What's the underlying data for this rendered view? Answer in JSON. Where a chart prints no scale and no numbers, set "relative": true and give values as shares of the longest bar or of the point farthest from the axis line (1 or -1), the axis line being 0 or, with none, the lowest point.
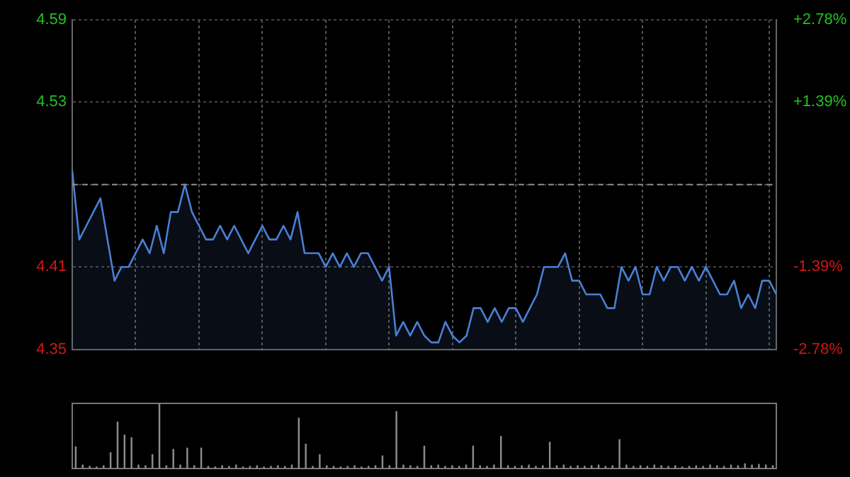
{
  "chart_data": [
    {
      "type": "area",
      "categories": [
        null,
        null,
        null,
        null,
        null,
        null,
        null,
        null,
        null,
        null,
        null,
        null,
        null,
        null,
        null,
        null,
        null,
        null,
        null,
        null,
        null,
        null,
        null,
        null,
        null,
        null,
        null,
        null,
        null,
        null,
        null,
        null,
        null,
        null,
        null,
        null,
        null,
        null,
        null,
        null,
        null,
        null,
        null,
        null,
        null,
        null,
        null,
        null,
        null,
        null,
        null,
        null,
        null,
        null,
        null,
        null,
        null,
        null,
        null,
        null,
        null,
        null,
        null,
        null,
        null,
        null,
        null,
        null,
        null,
        null,
        null,
        null,
        null,
        null,
        null,
        null,
        null,
        null,
        null,
        null,
        null,
        null,
        null,
        null,
        null,
        null,
        null,
        null,
        null,
        null,
        null,
        null,
        null,
        null,
        null,
        null,
        null,
        null,
        null,
        null,
        null
      ],
      "series": [
        {
          "color": "#4a7fd4",
          "values": [
            4.48,
            4.43,
            4.44,
            4.45,
            4.46,
            4.43,
            4.4,
            4.41,
            4.41,
            4.42,
            4.43,
            4.42,
            4.44,
            4.42,
            4.45,
            4.45,
            4.47,
            4.45,
            4.44,
            4.43,
            4.43,
            4.44,
            4.43,
            4.44,
            4.43,
            4.42,
            4.43,
            4.44,
            4.43,
            4.43,
            4.44,
            4.43,
            4.45,
            4.42,
            4.42,
            4.42,
            4.41,
            4.42,
            4.41,
            4.42,
            4.41,
            4.42,
            4.42,
            4.41,
            4.4,
            4.41,
            4.36,
            4.37,
            4.36,
            4.37,
            4.36,
            4.355,
            4.355,
            4.37,
            4.36,
            4.355,
            4.36,
            4.38,
            4.38,
            4.37,
            4.38,
            4.37,
            4.38,
            4.38,
            4.37,
            4.38,
            4.39,
            4.41,
            4.41,
            4.41,
            4.42,
            4.4,
            4.4,
            4.39,
            4.39,
            4.39,
            4.38,
            4.38,
            4.41,
            4.4,
            4.41,
            4.39,
            4.39,
            4.41,
            4.4,
            4.41,
            4.41,
            4.4,
            4.41,
            4.4,
            4.41,
            4.4,
            4.39,
            4.39,
            4.4,
            4.38,
            4.39,
            4.38,
            4.4,
            4.4,
            4.39
          ]
        }
      ],
      "ylim": [
        4.35,
        4.59
      ],
      "yticks": [
        4.59,
        4.53,
        {
          "value": 4.47,
          "label": null
        },
        4.41,
        4.35
      ],
      "y2lim": [
        -2.78,
        2.78
      ],
      "y2ticks": [
        {
          "value": 2.78,
          "label": "+2.78%"
        },
        {
          "value": 1.39,
          "label": "+1.39%"
        },
        {
          "value": -1.39,
          "label": "-1.39%"
        },
        {
          "value": -2.78,
          "label": "-2.78%"
        }
      ],
      "ref_lines": [
        {
          "axis": "y",
          "value": 4.47,
          "color": "#8a8a8a",
          "line_style": "dashed"
        }
      ],
      "grid": true,
      "marker": "none",
      "line_style": "solid",
      "legend": false
    },
    {
      "type": "bar",
      "relative": true,
      "categories": [
        null,
        null,
        null,
        null,
        null,
        null,
        null,
        null,
        null,
        null,
        null,
        null,
        null,
        null,
        null,
        null,
        null,
        null,
        null,
        null,
        null,
        null,
        null,
        null,
        null,
        null,
        null,
        null,
        null,
        null,
        null,
        null,
        null,
        null,
        null,
        null,
        null,
        null,
        null,
        null,
        null,
        null,
        null,
        null,
        null,
        null,
        null,
        null,
        null,
        null,
        null,
        null,
        null,
        null,
        null,
        null,
        null,
        null,
        null,
        null,
        null,
        null,
        null,
        null,
        null,
        null,
        null,
        null,
        null,
        null,
        null,
        null,
        null,
        null,
        null,
        null,
        null,
        null,
        null,
        null,
        null,
        null,
        null,
        null,
        null,
        null,
        null,
        null,
        null,
        null,
        null,
        null,
        null,
        null,
        null,
        null,
        null,
        null,
        null,
        null,
        null
      ],
      "color": "#8c8c8c",
      "values": [
        0.34,
        0.06,
        0.04,
        0.03,
        0.05,
        0.25,
        0.72,
        0.52,
        0.48,
        0.06,
        0.05,
        0.22,
        1,
        0.05,
        0.3,
        0.06,
        0.32,
        0.05,
        0.32,
        0.04,
        0.03,
        0.05,
        0.04,
        0.06,
        0.03,
        0.04,
        0.05,
        0.03,
        0.04,
        0.05,
        0.04,
        0.06,
        0.78,
        0.38,
        0.04,
        0.22,
        0.05,
        0.04,
        0.03,
        0.04,
        0.05,
        0.03,
        0.04,
        0.05,
        0.2,
        0.05,
        0.88,
        0.06,
        0.05,
        0.04,
        0.35,
        0.05,
        0.06,
        0.04,
        0.05,
        0.04,
        0.06,
        0.35,
        0.05,
        0.04,
        0.06,
        0.5,
        0.05,
        0.04,
        0.05,
        0.06,
        0.04,
        0.05,
        0.41,
        0.05,
        0.06,
        0.04,
        0.05,
        0.04,
        0.05,
        0.06,
        0.04,
        0.05,
        0.45,
        0.06,
        0.04,
        0.05,
        0.04,
        0.06,
        0.05,
        0.04,
        0.05,
        0.03,
        0.04,
        0.05,
        0.04,
        0.06,
        0.05,
        0.04,
        0.06,
        0.05,
        0.08,
        0.06,
        0.07,
        0.06,
        0.05
      ],
      "legend": false
    }
  ]
}
